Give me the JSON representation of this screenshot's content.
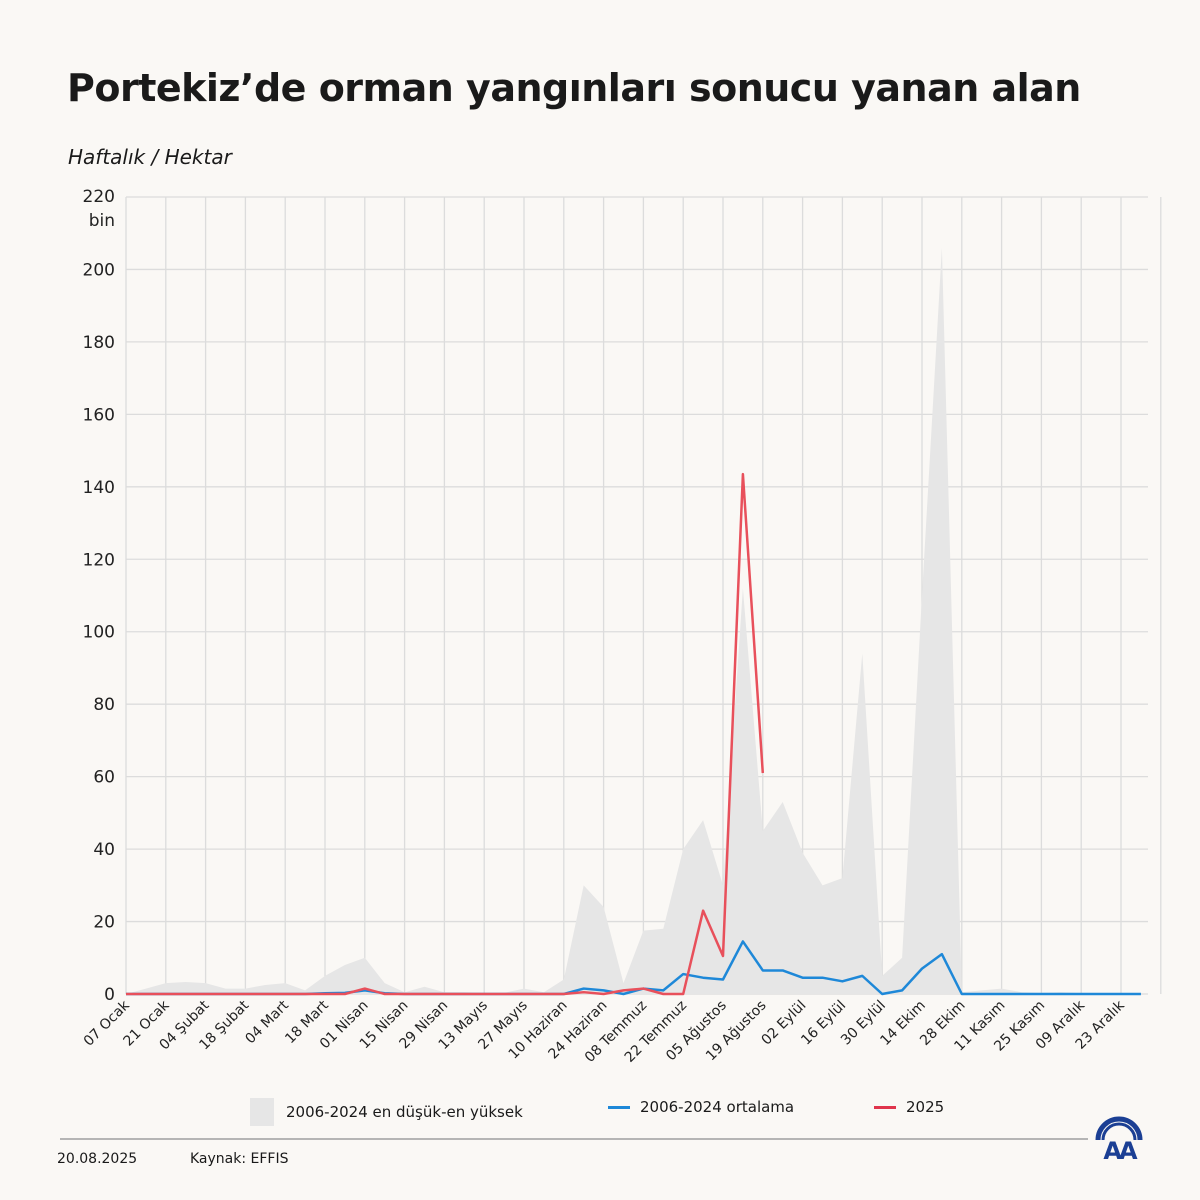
{
  "header": {
    "title": "Portekiz’de orman yangınları sonucu yanan alan",
    "subtitle": "Haftalık / Hektar"
  },
  "chart_data": {
    "type": "line",
    "title": "Portekiz’de orman yangınları sonucu yanan alan",
    "ylabel": "Haftalık / Hektar",
    "y_unit": "bin",
    "ylim": [
      0,
      220
    ],
    "yticks": [
      0,
      20,
      40,
      60,
      80,
      100,
      120,
      140,
      160,
      180,
      200,
      220
    ],
    "grid": true,
    "legend_position": "bottom",
    "x_tick_labels": [
      "07 Ocak",
      "21 Ocak",
      "04 Şubat",
      "18 Şubat",
      "04 Mart",
      "18 Mart",
      "01 Nisan",
      "15 Nisan",
      "29 Nisan",
      "13 Mayıs",
      "27 Mayıs",
      "10 Haziran",
      "24 Haziran",
      "08 Temmuz",
      "22 Temmuz",
      "05 Ağustos",
      "19 Ağustos",
      "02 Eylül",
      "16 Eylül",
      "30 Eylül",
      "14 Ekim",
      "28 Ekim",
      "11 Kasım",
      "25 Kasım",
      "09 Aralık",
      "23 Aralık"
    ],
    "weeks": 52,
    "series": [
      {
        "name": "2006-2024 en düşük-en yüksek",
        "kind": "range",
        "color": "#e6e6e6",
        "min": [
          0,
          0,
          0,
          0,
          0,
          0,
          0,
          0,
          0,
          0,
          0,
          0,
          0,
          0,
          0,
          0,
          0,
          0,
          0,
          0,
          0,
          0,
          0,
          0,
          0,
          0,
          0,
          0,
          0,
          0,
          0,
          0,
          0,
          0,
          0,
          0,
          0,
          0,
          0,
          0,
          0,
          0,
          0,
          0,
          0,
          0,
          0,
          0,
          0,
          0,
          0,
          0
        ],
        "max": [
          0,
          1.5,
          3,
          3.3,
          3,
          1.5,
          1.5,
          2.5,
          3,
          1,
          5,
          8,
          10,
          3,
          0.5,
          2,
          0.5,
          0.5,
          0.3,
          0.3,
          1.5,
          0.5,
          4,
          30,
          24,
          3,
          17.5,
          18,
          40,
          48,
          30,
          112,
          45,
          53,
          39,
          30,
          32,
          94,
          5,
          10,
          110,
          206,
          0.5,
          1,
          1.5,
          0.5,
          0.3,
          0.5,
          0.2,
          0.2,
          0.2,
          0.2
        ]
      },
      {
        "name": "2006-2024 ortalama",
        "kind": "line",
        "color": "#1e88d8",
        "values": [
          0,
          0,
          0,
          0,
          0,
          0,
          0,
          0,
          0,
          0,
          0.2,
          0.3,
          1,
          0.2,
          0,
          0,
          0,
          0,
          0,
          0,
          0,
          0,
          0,
          1.5,
          1,
          0,
          1.5,
          1,
          5.5,
          4.5,
          4,
          14.5,
          6.5,
          6.5,
          4.5,
          4.5,
          3.5,
          5,
          0,
          1,
          7,
          11,
          0,
          0,
          0,
          0,
          0,
          0,
          0,
          0,
          0,
          0
        ]
      },
      {
        "name": "2025",
        "kind": "line",
        "color": "#e8505b",
        "values": [
          0,
          0,
          0,
          0,
          0,
          0,
          0,
          0,
          0,
          0,
          0,
          0,
          1.5,
          0,
          0,
          0,
          0,
          0,
          0,
          0,
          0,
          0,
          0,
          0.5,
          0,
          1,
          1.5,
          0,
          0,
          23,
          10.5,
          143.5,
          61
        ]
      }
    ]
  },
  "legend": {
    "range": "2006-2024 en düşük-en yüksek",
    "avg": "2006-2024 ortalama",
    "current": "2025"
  },
  "footer": {
    "date": "20.08.2025",
    "source": "Kaynak: EFFIS",
    "logo_text": "AA"
  }
}
